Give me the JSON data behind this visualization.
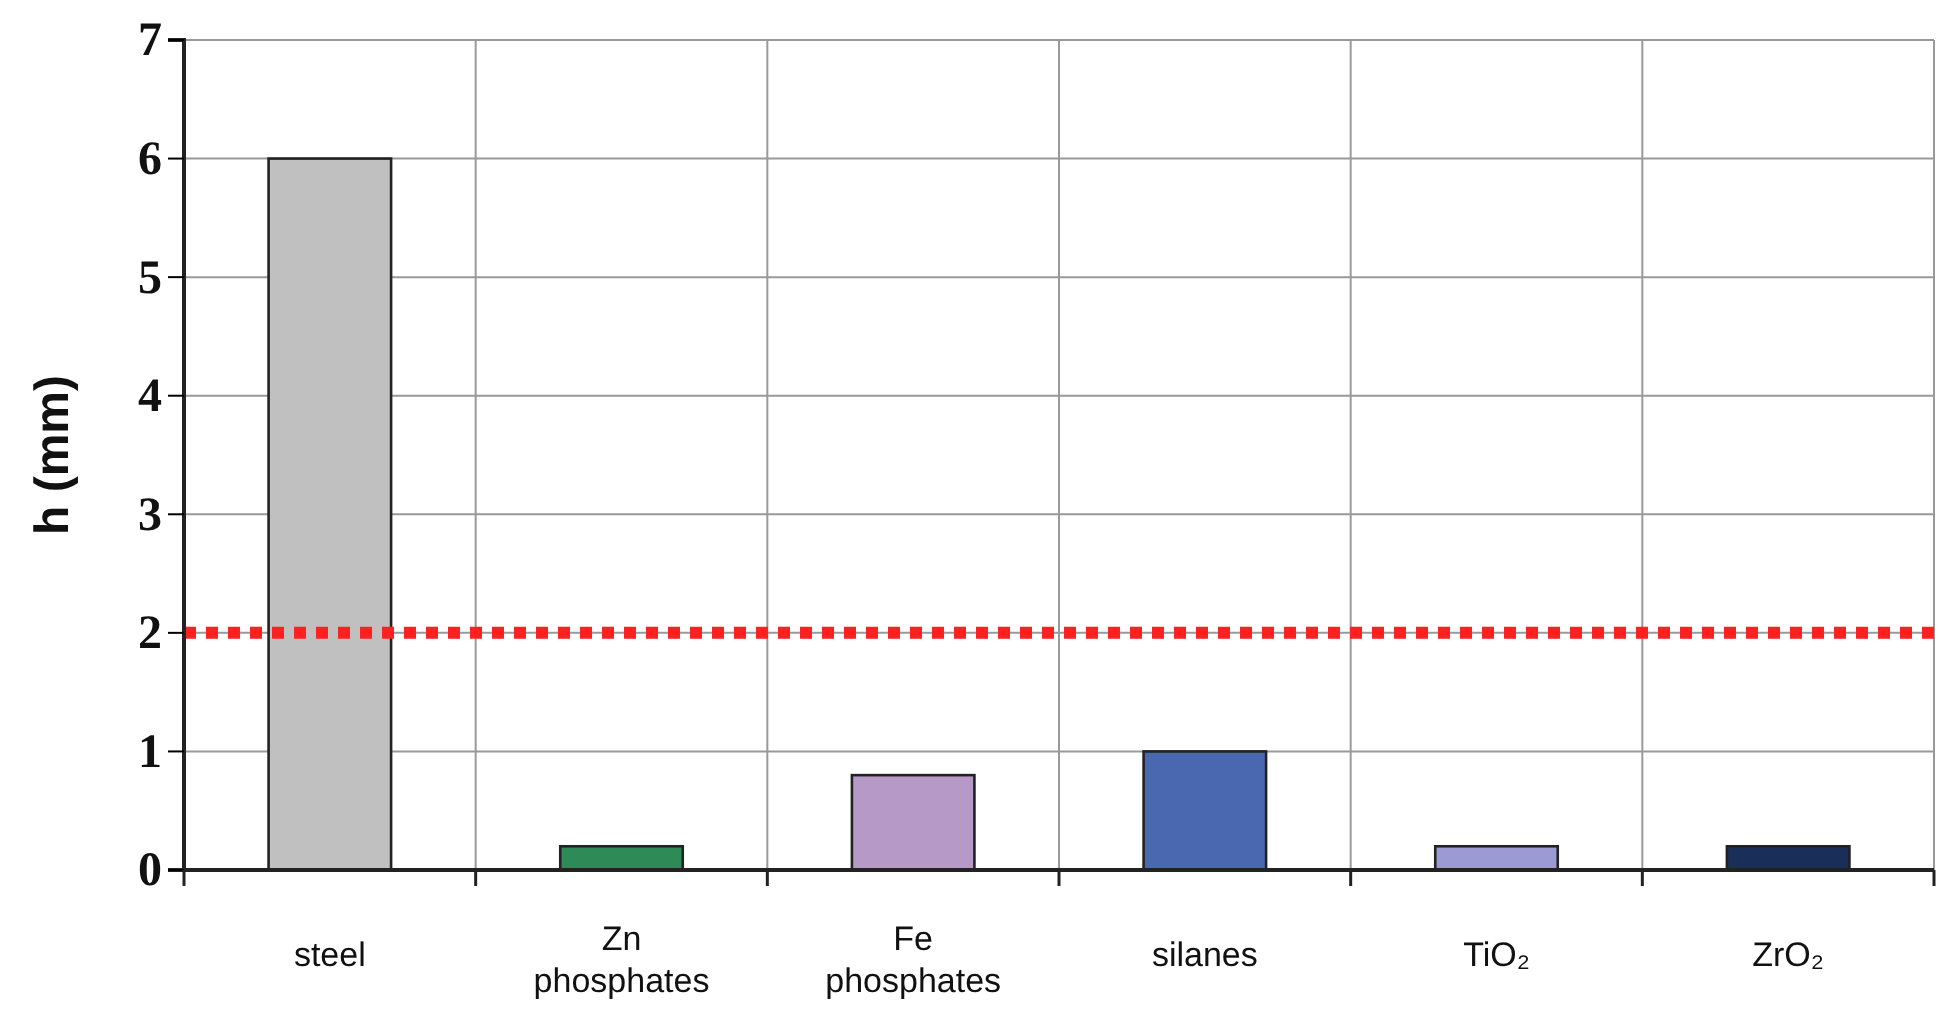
{
  "chart_data": {
    "type": "bar",
    "ylabel": "h (mm)",
    "categories": [
      "steel",
      "Zn phosphates",
      "Fe phosphates",
      "silanes",
      "TiO₂",
      "ZrO₂"
    ],
    "values": [
      6,
      0.2,
      0.8,
      1,
      0.2,
      0.2
    ],
    "colors": [
      "#c0c0c0",
      "#2e8b57",
      "#b799c8",
      "#4a68b0",
      "#9c9ad4",
      "#1a2e5a"
    ],
    "ylim": [
      0,
      7
    ],
    "yticks": [
      0,
      1,
      2,
      3,
      4,
      5,
      6,
      7
    ],
    "grid": true,
    "ref_lines": [
      {
        "axis": "y",
        "value": 2,
        "color": "#ff2020",
        "line_style": "dotted"
      }
    ]
  }
}
